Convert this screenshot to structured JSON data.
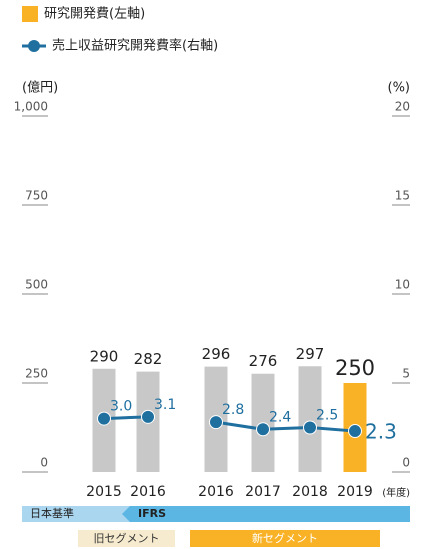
{
  "chart_data": {
    "type": "bar_line",
    "series": [
      {
        "name": "研究開発費(左軸)",
        "color": "#f9b226"
      },
      {
        "name": "売上収益研究開発費率(右軸)",
        "color": "#1f6f9f"
      }
    ],
    "ylabel": "(億円)",
    "y2label": "(%)",
    "ylim": [
      0,
      1000
    ],
    "yticks": [
      0,
      250,
      500,
      {
        "value": 750,
        "label": "750"
      },
      {
        "value": 1000,
        "label": "1,000"
      }
    ],
    "y2lim": [
      0,
      20
    ],
    "y2ticks": [
      0,
      5,
      10,
      15,
      20
    ],
    "xunit": "(年度)",
    "groups": [
      {
        "name": "旧セグメント",
        "color": "#f6ebcf",
        "categories": [
          "2015",
          "2016"
        ],
        "values": [
          290,
          282
        ],
        "bar_colors": [
          "#c8c8c8",
          "#c8c8c8"
        ],
        "rate": [
          3.0,
          3.1
        ],
        "rate_labels": [
          "3.0",
          "3.1"
        ]
      },
      {
        "name": "新セグメント",
        "color": "#f9b226",
        "categories": [
          "2016",
          "2017",
          "2018",
          "2019"
        ],
        "values": [
          296,
          276,
          297,
          250
        ],
        "bar_colors": [
          "#c8c8c8",
          "#c8c8c8",
          "#c8c8c8",
          "#f9b226"
        ],
        "rate": [
          2.8,
          2.4,
          2.5,
          2.3
        ],
        "rate_labels": [
          "2.8",
          "2.4",
          "2.5",
          "2.3"
        ]
      }
    ],
    "standards": [
      "日本基準",
      "IFRS"
    ]
  }
}
